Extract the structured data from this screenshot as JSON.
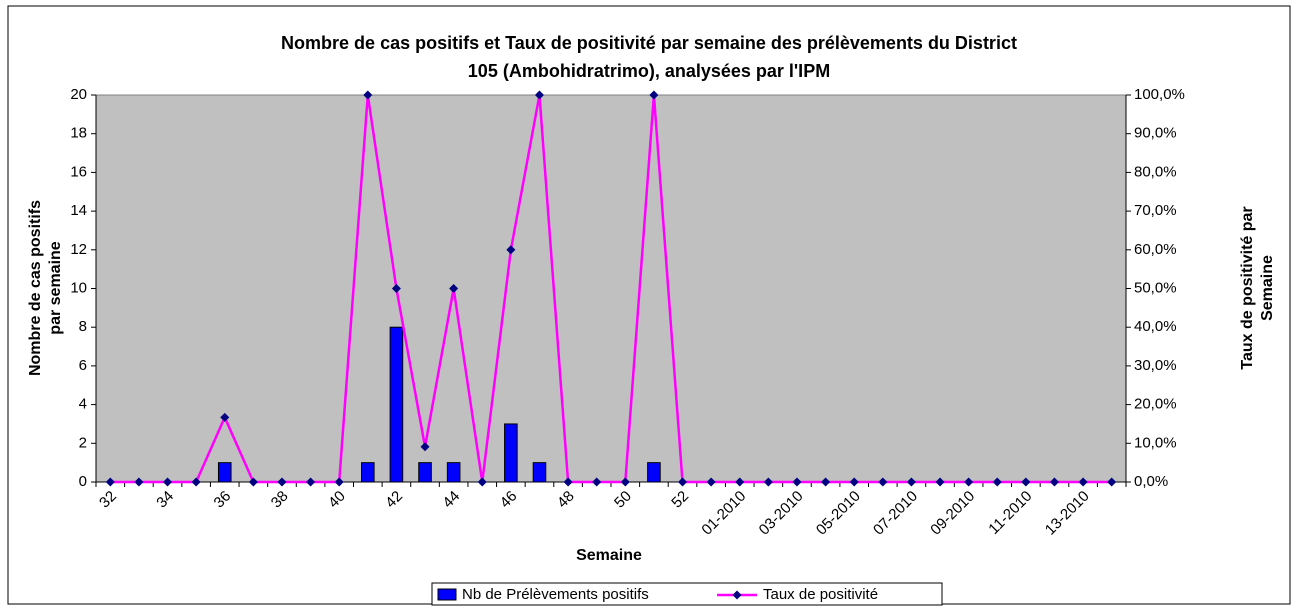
{
  "chart_data": {
    "type": "bar_line",
    "title": "Nombre de cas positifs et Taux de positivité par semaine des prélèvements du District",
    "subtitle": "105 (Ambohidratrimo), analysées par l'IPM",
    "x_label": "Semaine",
    "y_label": [
      "Nombre de cas positifs",
      "par semaine"
    ],
    "y2_label": [
      "Taux de positivité par",
      "Semaine"
    ],
    "categories": [
      "32",
      null,
      "34",
      null,
      "36",
      null,
      "38",
      null,
      "40",
      null,
      "42",
      null,
      "44",
      null,
      "46",
      null,
      "48",
      null,
      "50",
      null,
      "52",
      null,
      "01-2010",
      null,
      "03-2010",
      null,
      "05-2010",
      null,
      "07-2010",
      null,
      "09-2010",
      null,
      "11-2010",
      null,
      "13-2010",
      null
    ],
    "series": [
      {
        "name": "Nb de Prélèvements positifs",
        "color": "#0000ff",
        "kind": "bar",
        "values": [
          0,
          0,
          0,
          0,
          1,
          0,
          0,
          0,
          0,
          1,
          8,
          1,
          1,
          0,
          3,
          1,
          0,
          0,
          0,
          1,
          0,
          0,
          0,
          0,
          0,
          0,
          0,
          0,
          0,
          0,
          0,
          0,
          0,
          0,
          0,
          0
        ]
      },
      {
        "name": "Taux de positivité",
        "color": "#ff00ff",
        "marker_color": "#000080",
        "kind": "line",
        "axis": "y2",
        "values": [
          0,
          0,
          0,
          0,
          16.7,
          0,
          0,
          0,
          0,
          100,
          50,
          9.1,
          50,
          0,
          60,
          100,
          0,
          0,
          0,
          100,
          0,
          0,
          0,
          0,
          0,
          0,
          0,
          0,
          0,
          0,
          0,
          0,
          0,
          0,
          0,
          0
        ]
      }
    ],
    "ylim": [
      0,
      20
    ],
    "yticks": [
      0,
      2,
      4,
      6,
      8,
      10,
      12,
      14,
      16,
      18,
      20
    ],
    "y2lim": [
      0,
      100
    ],
    "y2ticks": [
      {
        "value": 0,
        "label": "0,0%"
      },
      {
        "value": 10,
        "label": "10,0%"
      },
      {
        "value": 20,
        "label": "20,0%"
      },
      {
        "value": 30,
        "label": "30,0%"
      },
      {
        "value": 40,
        "label": "40,0%"
      },
      {
        "value": 50,
        "label": "50,0%"
      },
      {
        "value": 60,
        "label": "60,0%"
      },
      {
        "value": 70,
        "label": "70,0%"
      },
      {
        "value": 80,
        "label": "80,0%"
      },
      {
        "value": 90,
        "label": "90,0%"
      },
      {
        "value": 100,
        "label": "100,0%"
      }
    ],
    "plot_background": "#c0c0c0"
  }
}
